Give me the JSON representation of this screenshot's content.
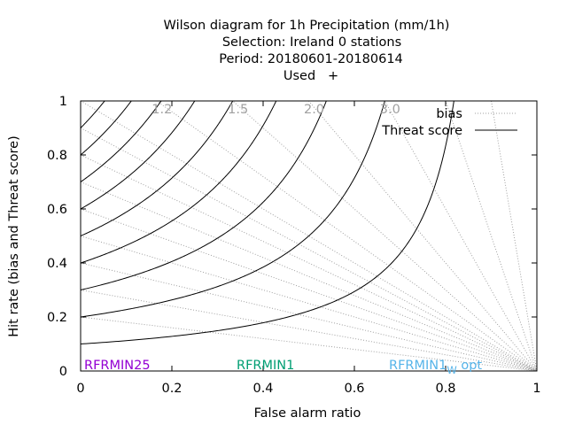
{
  "chart_data": {
    "type": "line",
    "title_lines": [
      "Wilson diagram  for 1h Precipitation (mm/1h)",
      "Selection: Ireland      0 stations",
      "Period: 20180601-20180614",
      "Used   +"
    ],
    "xlabel": "False alarm ratio",
    "ylabel": "Hit rate (bias and Threat score)",
    "xlim": [
      0,
      1
    ],
    "ylim": [
      0,
      1
    ],
    "x_ticks": [
      "0",
      "0.2",
      "0.4",
      "0.6",
      "0.8",
      "1"
    ],
    "y_ticks": [
      "0",
      "0.2",
      "0.4",
      "0.6",
      "0.8",
      "1"
    ],
    "grid": false,
    "legend": {
      "placement": "top-right",
      "entries": [
        {
          "label": "bias",
          "style": "dotted",
          "color": "#a0a0a0"
        },
        {
          "label": "Threat score",
          "style": "solid",
          "color": "#000000"
        }
      ]
    },
    "bias_lines": [
      0.2,
      0.3,
      0.4,
      0.5,
      0.6,
      0.7,
      0.8,
      0.9,
      1.0,
      1.2,
      1.5,
      2.0,
      3.0,
      5.0,
      10.0
    ],
    "bias_labels": [
      "1.2",
      "1.5",
      "2.0",
      "3.0"
    ],
    "threat_score_levels": [
      0.1,
      0.2,
      0.3,
      0.4,
      0.5,
      0.6,
      0.7,
      0.8,
      0.9
    ],
    "experiments": [
      {
        "label": "RFRMIN25",
        "color": "#9400d3"
      },
      {
        "label": "RFRMIN1",
        "color": "#009e73"
      },
      {
        "label": "RFRMIN1_W_opt",
        "color": "#56b4e9"
      }
    ]
  }
}
